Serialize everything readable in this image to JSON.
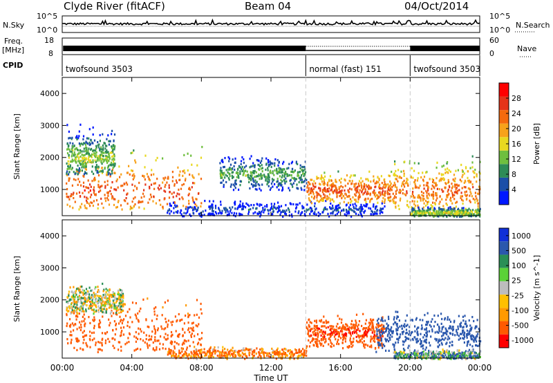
{
  "header": {
    "station": "Clyde River (fitACF)",
    "beam": "Beam 04",
    "date": "04/Oct/2014"
  },
  "left_labels": {
    "nsky": "N.Sky",
    "freq": "Freq.",
    "freq_unit": "[MHz]",
    "cpid": "CPID"
  },
  "right_labels": {
    "nsearch": "N.Search",
    "nave": "Nave"
  },
  "noise_panel": {
    "top_tick": "10^5",
    "bottom_tick": "10^0"
  },
  "freq_panel": {
    "left_ticks": [
      "18",
      "8"
    ],
    "right_ticks": [
      "60",
      "0"
    ]
  },
  "cpid_segments": [
    {
      "label": "twofsound 3503",
      "start_hour": 0,
      "end_hour": 14
    },
    {
      "label": "normal (fast) 151",
      "start_hour": 14,
      "end_hour": 20
    },
    {
      "label": "twofsound 3503",
      "start_hour": 20,
      "end_hour": 24
    }
  ],
  "colors": {
    "power_scale": [
      "#0018ff",
      "#1c4fa8",
      "#2e8b57",
      "#6fbf3f",
      "#e8d820",
      "#f7a21b",
      "#f46a0e",
      "#e5341a",
      "#ff0000"
    ],
    "velocity_scale": [
      "#ff0000",
      "#ff5a00",
      "#ff9a00",
      "#ffc000",
      "#bdbdbd",
      "#5bd238",
      "#2a8f56",
      "#2b58ad",
      "#1030d8"
    ]
  },
  "chart_data": [
    {
      "type": "heatmap",
      "title": "",
      "xlabel": "Time UT",
      "ylabel": "Slant Range [km]",
      "x_ticks": [
        "00:00",
        "04:00",
        "08:00",
        "12:00",
        "16:00",
        "20:00",
        "00:00"
      ],
      "xlim_hours": [
        0,
        24
      ],
      "y_ticks": [
        "1000",
        "2000",
        "3000",
        "4000"
      ],
      "ylim": [
        180,
        4500
      ],
      "colorbar": {
        "label": "Power [dB]",
        "ticks": [
          "4",
          "8",
          "12",
          "16",
          "20",
          "24",
          "28"
        ],
        "range": [
          0,
          32
        ]
      },
      "mode_change_lines": [
        14,
        20
      ],
      "regions": [
        {
          "t": [
            0.2,
            8.0
          ],
          "range_km": [
            400,
            2700
          ],
          "core_km": 1000,
          "value_db": 26
        },
        {
          "t": [
            0.2,
            3.0
          ],
          "range_km": [
            1500,
            3200
          ],
          "core_km": 2000,
          "value_db": 14
        },
        {
          "t": [
            6.0,
            18.5
          ],
          "range_km": [
            180,
            700
          ],
          "core_km": 400,
          "value_db": 6
        },
        {
          "t": [
            9.0,
            14.0
          ],
          "range_km": [
            1000,
            2200
          ],
          "core_km": 1500,
          "value_db": 12
        },
        {
          "t": [
            14.0,
            19.0
          ],
          "range_km": [
            600,
            1700
          ],
          "core_km": 1000,
          "value_db": 26
        },
        {
          "t": [
            19.0,
            24.0
          ],
          "range_km": [
            400,
            2200
          ],
          "core_km": 1000,
          "value_db": 24
        },
        {
          "t": [
            20.0,
            24.0
          ],
          "range_km": [
            180,
            500
          ],
          "core_km": 300,
          "value_db": 16
        }
      ]
    },
    {
      "type": "heatmap",
      "title": "",
      "xlabel": "Time UT",
      "ylabel": "Slant Range [km]",
      "x_ticks": [
        "00:00",
        "04:00",
        "08:00",
        "12:00",
        "16:00",
        "20:00",
        "00:00"
      ],
      "xlim_hours": [
        0,
        24
      ],
      "y_ticks": [
        "1000",
        "2000",
        "3000",
        "4000"
      ],
      "ylim": [
        180,
        4500
      ],
      "colorbar": {
        "label": "Velocity [m s^-1]",
        "ticks": [
          "1000",
          "500",
          "100",
          "25",
          "-25",
          "-100",
          "-500",
          "-1000"
        ],
        "range": [
          -1000,
          1000
        ]
      },
      "mode_change_lines": [
        14,
        20
      ],
      "regions": [
        {
          "t": [
            0.2,
            8.0
          ],
          "range_km": [
            400,
            2500
          ],
          "core_km": 1000,
          "value_ms": -300
        },
        {
          "t": [
            0.2,
            3.5
          ],
          "range_km": [
            1600,
            2600
          ],
          "core_km": 2000,
          "value_ms": 0
        },
        {
          "t": [
            6.0,
            14.0
          ],
          "range_km": [
            180,
            600
          ],
          "core_km": 350,
          "value_ms": -150
        },
        {
          "t": [
            14.0,
            18.5
          ],
          "range_km": [
            500,
            1600
          ],
          "core_km": 1000,
          "value_ms": -500
        },
        {
          "t": [
            18.0,
            24.0
          ],
          "range_km": [
            400,
            1700
          ],
          "core_km": 1000,
          "value_ms": 400
        },
        {
          "t": [
            19.0,
            24.0
          ],
          "range_km": [
            180,
            500
          ],
          "core_km": 300,
          "value_ms": 80
        }
      ]
    }
  ]
}
